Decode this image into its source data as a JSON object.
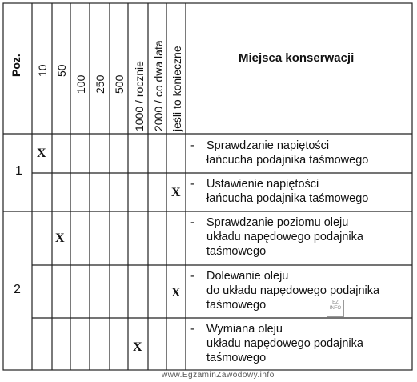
{
  "table": {
    "header": {
      "poz": "Poz.",
      "intervals": [
        "10",
        "50",
        "100",
        "250",
        "500",
        "1000 / rocznie",
        "2000 / co dwa lata",
        "jeśli to konieczne"
      ],
      "places": "Miejsca konserwacji"
    },
    "groups": [
      {
        "poz": "1",
        "rows": [
          {
            "mark": "X",
            "mark_column": "10",
            "lines": [
              "Sprawdzanie napiętości",
              "łańcucha podajnika taśmowego"
            ]
          },
          {
            "mark": "X",
            "mark_column": "jeśli to konieczne",
            "lines": [
              "Ustawienie napiętości",
              "łańcucha podajnika taśmowego"
            ]
          }
        ]
      },
      {
        "poz": "2",
        "rows": [
          {
            "mark": "X",
            "mark_column": "50",
            "lines": [
              "Sprawdzanie poziomu oleju",
              "układu napędowego podajnika",
              "taśmowego"
            ]
          },
          {
            "mark": "X",
            "mark_column": "jeśli to konieczne",
            "lines": [
              "Dolewanie oleju",
              "do układu napędowego podajnika",
              "taśmowego"
            ]
          },
          {
            "mark": "X",
            "mark_column": "1000 / rocznie",
            "lines": [
              "Wymiana oleju",
              "układu napędowego podajnika",
              "taśmowego"
            ]
          }
        ]
      }
    ],
    "dash": "-"
  },
  "footer": "www.EgzaminZawodowy.info"
}
